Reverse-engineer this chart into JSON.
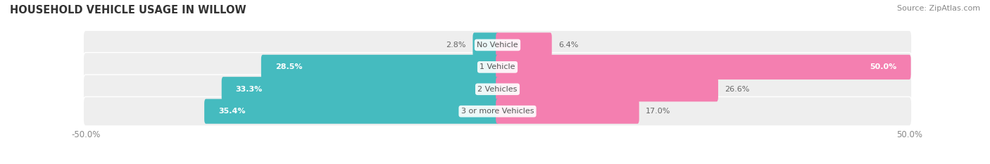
{
  "title": "HOUSEHOLD VEHICLE USAGE IN WILLOW",
  "source": "Source: ZipAtlas.com",
  "categories": [
    "No Vehicle",
    "1 Vehicle",
    "2 Vehicles",
    "3 or more Vehicles"
  ],
  "owner_values": [
    2.8,
    28.5,
    33.3,
    35.4
  ],
  "renter_values": [
    6.4,
    50.0,
    26.6,
    17.0
  ],
  "owner_color": "#45BBBF",
  "renter_color": "#F47FB0",
  "bar_bg_color": "#EEEEEE",
  "bar_height": 0.72,
  "bar_gap": 0.14,
  "xlim_half": 50,
  "title_fontsize": 10.5,
  "cat_fontsize": 8,
  "val_fontsize": 8,
  "tick_fontsize": 8.5,
  "source_fontsize": 8,
  "val_color_outside": "#666666",
  "val_color_inside": "#ffffff",
  "cat_color": "#555555"
}
